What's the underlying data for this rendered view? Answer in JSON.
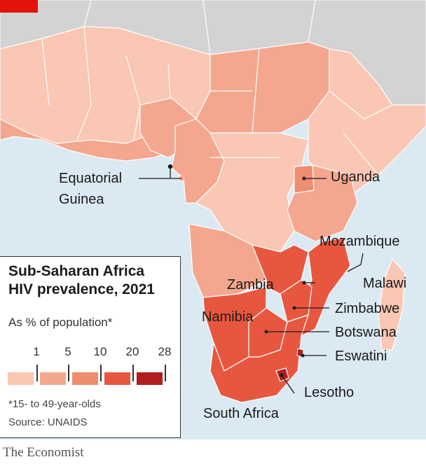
{
  "colors": {
    "sea": "#dbe9f2",
    "non_ssa": "#d3d3d3",
    "band1": "#f9c7b3",
    "band2": "#f4a78e",
    "band3": "#ef8d70",
    "band4": "#e7573f",
    "band5": "#b21d1d",
    "accent": "#e3120b"
  },
  "legend": {
    "title_line1": "Sub-Saharan Africa",
    "title_line2": "HIV prevalence, 2021",
    "subtitle": "As % of population*",
    "ticks": [
      "1",
      "5",
      "10",
      "20",
      "28"
    ],
    "note": "*15- to 49-year-olds",
    "source": "Source: UNAIDS"
  },
  "labels": {
    "equatorial_guinea_1": "Equatorial",
    "equatorial_guinea_2": "Guinea",
    "uganda": "Uganda",
    "mozambique": "Mozambique",
    "zambia": "Zambia",
    "malawi": "Malawi",
    "namibia": "Namibia",
    "zimbabwe": "Zimbabwe",
    "botswana": "Botswana",
    "eswatini": "Eswatini",
    "lesotho": "Lesotho",
    "south_africa": "South Africa"
  },
  "brand": "The Economist"
}
